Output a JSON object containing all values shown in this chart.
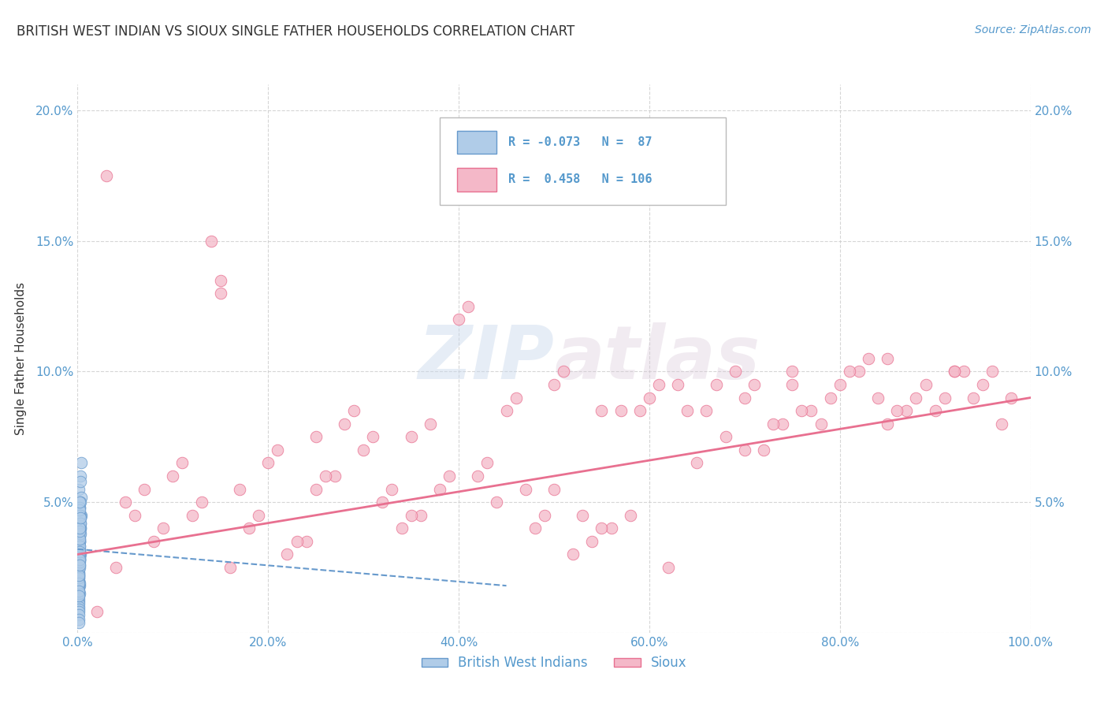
{
  "title": "BRITISH WEST INDIAN VS SIOUX SINGLE FATHER HOUSEHOLDS CORRELATION CHART",
  "source": "Source: ZipAtlas.com",
  "ylabel": "Single Father Households",
  "watermark_zip": "ZIP",
  "watermark_atlas": "atlas",
  "bottom_legend": [
    "British West Indians",
    "Sioux"
  ],
  "xlim": [
    0,
    1.0
  ],
  "ylim": [
    0,
    0.21
  ],
  "xticks": [
    0.0,
    0.2,
    0.4,
    0.6,
    0.8,
    1.0
  ],
  "yticks": [
    0.0,
    0.05,
    0.1,
    0.15,
    0.2
  ],
  "xtick_labels": [
    "0.0%",
    "20.0%",
    "40.0%",
    "60.0%",
    "80.0%",
    "100.0%"
  ],
  "ytick_labels": [
    "",
    "5.0%",
    "10.0%",
    "15.0%",
    "20.0%"
  ],
  "background_color": "#ffffff",
  "grid_color": "#cccccc",
  "tick_color": "#5599cc",
  "title_color": "#333333",
  "blue_r": -0.073,
  "blue_n": 87,
  "pink_r": 0.458,
  "pink_n": 106,
  "blue_scatter_x": [
    0.001,
    0.002,
    0.001,
    0.003,
    0.002,
    0.003,
    0.002,
    0.001,
    0.002,
    0.004,
    0.002,
    0.003,
    0.001,
    0.004,
    0.003,
    0.002,
    0.001,
    0.002,
    0.003,
    0.002,
    0.001,
    0.002,
    0.001,
    0.003,
    0.004,
    0.002,
    0.001,
    0.002,
    0.003,
    0.001,
    0.002,
    0.001,
    0.002,
    0.003,
    0.002,
    0.001,
    0.001,
    0.002,
    0.002,
    0.001,
    0.002,
    0.001,
    0.003,
    0.002,
    0.001,
    0.002,
    0.001,
    0.002,
    0.001,
    0.002,
    0.002,
    0.001,
    0.002,
    0.001,
    0.002,
    0.002,
    0.001,
    0.001,
    0.002,
    0.002,
    0.001,
    0.002,
    0.001,
    0.002,
    0.001,
    0.002,
    0.002,
    0.001,
    0.002,
    0.001,
    0.003,
    0.002,
    0.001,
    0.002,
    0.001,
    0.003,
    0.001,
    0.002,
    0.002,
    0.001,
    0.001,
    0.002,
    0.002,
    0.001,
    0.002,
    0.003,
    0.002
  ],
  "blue_scatter_y": [
    0.055,
    0.048,
    0.032,
    0.04,
    0.028,
    0.06,
    0.035,
    0.022,
    0.018,
    0.045,
    0.038,
    0.03,
    0.025,
    0.052,
    0.042,
    0.035,
    0.02,
    0.015,
    0.058,
    0.033,
    0.027,
    0.019,
    0.012,
    0.05,
    0.065,
    0.03,
    0.022,
    0.038,
    0.044,
    0.016,
    0.028,
    0.021,
    0.036,
    0.04,
    0.029,
    0.018,
    0.013,
    0.048,
    0.04,
    0.023,
    0.031,
    0.014,
    0.045,
    0.037,
    0.02,
    0.028,
    0.011,
    0.045,
    0.024,
    0.035,
    0.026,
    0.01,
    0.038,
    0.017,
    0.029,
    0.039,
    0.023,
    0.009,
    0.047,
    0.032,
    0.018,
    0.041,
    0.008,
    0.025,
    0.015,
    0.05,
    0.037,
    0.021,
    0.03,
    0.007,
    0.042,
    0.033,
    0.019,
    0.027,
    0.005,
    0.038,
    0.016,
    0.031,
    0.036,
    0.022,
    0.004,
    0.039,
    0.028,
    0.014,
    0.04,
    0.044,
    0.026
  ],
  "pink_scatter_x": [
    0.05,
    0.08,
    0.12,
    0.1,
    0.15,
    0.18,
    0.2,
    0.22,
    0.25,
    0.28,
    0.3,
    0.32,
    0.35,
    0.38,
    0.4,
    0.42,
    0.45,
    0.48,
    0.5,
    0.52,
    0.55,
    0.58,
    0.6,
    0.62,
    0.65,
    0.68,
    0.7,
    0.72,
    0.75,
    0.78,
    0.8,
    0.82,
    0.85,
    0.88,
    0.9,
    0.92,
    0.95,
    0.98,
    0.07,
    0.11,
    0.14,
    0.17,
    0.21,
    0.24,
    0.27,
    0.31,
    0.34,
    0.37,
    0.41,
    0.44,
    0.47,
    0.51,
    0.54,
    0.57,
    0.61,
    0.64,
    0.67,
    0.71,
    0.74,
    0.77,
    0.81,
    0.84,
    0.87,
    0.91,
    0.94,
    0.97,
    0.06,
    0.13,
    0.19,
    0.26,
    0.33,
    0.39,
    0.46,
    0.53,
    0.59,
    0.66,
    0.73,
    0.79,
    0.86,
    0.93,
    0.04,
    0.09,
    0.16,
    0.23,
    0.29,
    0.36,
    0.43,
    0.49,
    0.56,
    0.63,
    0.69,
    0.76,
    0.83,
    0.89,
    0.96,
    0.03,
    0.25,
    0.5,
    0.75,
    0.92,
    0.15,
    0.35,
    0.55,
    0.7,
    0.85,
    0.02
  ],
  "pink_scatter_y": [
    0.05,
    0.035,
    0.045,
    0.06,
    0.13,
    0.04,
    0.065,
    0.03,
    0.055,
    0.08,
    0.07,
    0.05,
    0.075,
    0.055,
    0.12,
    0.06,
    0.085,
    0.04,
    0.095,
    0.03,
    0.085,
    0.045,
    0.09,
    0.025,
    0.065,
    0.075,
    0.09,
    0.07,
    0.095,
    0.08,
    0.095,
    0.1,
    0.105,
    0.09,
    0.085,
    0.1,
    0.095,
    0.09,
    0.055,
    0.065,
    0.15,
    0.055,
    0.07,
    0.035,
    0.06,
    0.075,
    0.04,
    0.08,
    0.125,
    0.05,
    0.055,
    0.1,
    0.035,
    0.085,
    0.095,
    0.085,
    0.095,
    0.095,
    0.08,
    0.085,
    0.1,
    0.09,
    0.085,
    0.09,
    0.09,
    0.08,
    0.045,
    0.05,
    0.045,
    0.06,
    0.055,
    0.06,
    0.09,
    0.045,
    0.085,
    0.085,
    0.08,
    0.09,
    0.085,
    0.1,
    0.025,
    0.04,
    0.025,
    0.035,
    0.085,
    0.045,
    0.065,
    0.045,
    0.04,
    0.095,
    0.1,
    0.085,
    0.105,
    0.095,
    0.1,
    0.175,
    0.075,
    0.055,
    0.1,
    0.1,
    0.135,
    0.045,
    0.04,
    0.07,
    0.08,
    0.008
  ],
  "blue_line_x0": 0.0,
  "blue_line_x1": 0.45,
  "blue_line_y0": 0.032,
  "blue_line_y1": 0.018,
  "pink_line_x0": 0.0,
  "pink_line_x1": 1.0,
  "pink_line_y0": 0.03,
  "pink_line_y1": 0.09
}
